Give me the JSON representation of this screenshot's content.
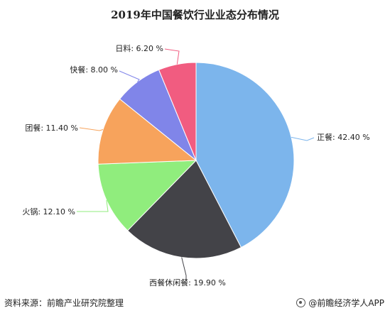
{
  "chart_data": {
    "type": "pie",
    "title": "2019年中国餐饮行业业态分布情况",
    "unit": "%",
    "categories": [
      "正餐",
      "西餐休闲餐",
      "火锅",
      "团餐",
      "快餐",
      "日料"
    ],
    "values": [
      42.4,
      19.9,
      12.1,
      11.4,
      8.0,
      6.2
    ],
    "labels": [
      "正餐: 42.40 %",
      "西餐休闲餐: 19.90 %",
      "火锅: 12.10 %",
      "团餐: 11.40 %",
      "快餐: 8.00 %",
      "日料: 6.20 %"
    ],
    "colors": [
      "#7cb5ec",
      "#434348",
      "#90ed7d",
      "#f7a35c",
      "#8085e9",
      "#f15c80"
    ],
    "start_angle": "12 o'clock",
    "direction": "clockwise"
  },
  "footer": {
    "source": "资料来源：前瞻产业研究院整理",
    "credit": "@前瞻经济学人APP"
  }
}
